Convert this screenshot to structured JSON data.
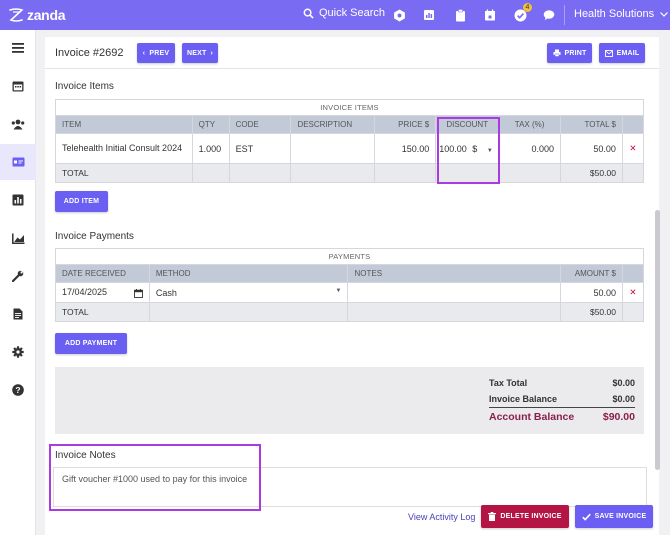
{
  "topbar": {
    "brand": "zanda",
    "quick_search": "Quick Search",
    "badge_count": "4",
    "org_name": "Health Solutions",
    "icons": [
      "grid-icon",
      "report-icon",
      "clipboard-icon",
      "calendar-icon",
      "check-badge-icon",
      "chat-icon"
    ]
  },
  "sidebar": {
    "items": [
      "menu-icon",
      "calendar-icon",
      "clients-icon",
      "billing-icon",
      "reports-icon",
      "chart-icon",
      "tools-icon",
      "document-icon",
      "settings-icon",
      "help-icon"
    ],
    "active": "billing-icon"
  },
  "invoice": {
    "title": "Invoice #2692",
    "prev": "PREV",
    "next": "NEXT",
    "print": "PRINT",
    "email": "EMAIL"
  },
  "items_section": {
    "heading": "Invoice Items",
    "caption": "INVOICE ITEMS",
    "columns": [
      "ITEM",
      "QTY",
      "CODE",
      "DESCRIPTION",
      "PRICE $",
      "DISCOUNT",
      "TAX (%)",
      "TOTAL $"
    ],
    "row": {
      "item": "Telehealth Initial Consult 2024",
      "qty": "1.000",
      "code": "EST",
      "description": "",
      "price": "150.00",
      "discount": "100.00",
      "discount_unit": "$",
      "tax": "0.000",
      "total": "50.00"
    },
    "total_label": "TOTAL",
    "total_value": "$50.00",
    "add_button": "ADD ITEM"
  },
  "payments_section": {
    "heading": "Invoice Payments",
    "caption": "PAYMENTS",
    "columns": [
      "DATE RECEIVED",
      "METHOD",
      "NOTES",
      "AMOUNT $"
    ],
    "row": {
      "date": "17/04/2025",
      "method": "Cash",
      "notes": "",
      "amount": "50.00"
    },
    "total_label": "TOTAL",
    "total_value": "$50.00",
    "add_button": "ADD PAYMENT"
  },
  "summary": {
    "tax_total_label": "Tax Total",
    "tax_total_value": "$0.00",
    "balance_label": "Invoice Balance",
    "balance_value": "$0.00",
    "account_label": "Account Balance",
    "account_value": "$90.00"
  },
  "notes": {
    "heading": "Invoice Notes",
    "text": "Gift voucher #1000 used to pay for this invoice"
  },
  "footer": {
    "activity_link": "View Activity Log",
    "delete": "DELETE INVOICE",
    "save": "SAVE INVOICE"
  },
  "colors": {
    "primary": "#7a6cf2",
    "danger": "#b51545",
    "highlight": "#a93be0",
    "account_balance": "#8b1f4b"
  }
}
